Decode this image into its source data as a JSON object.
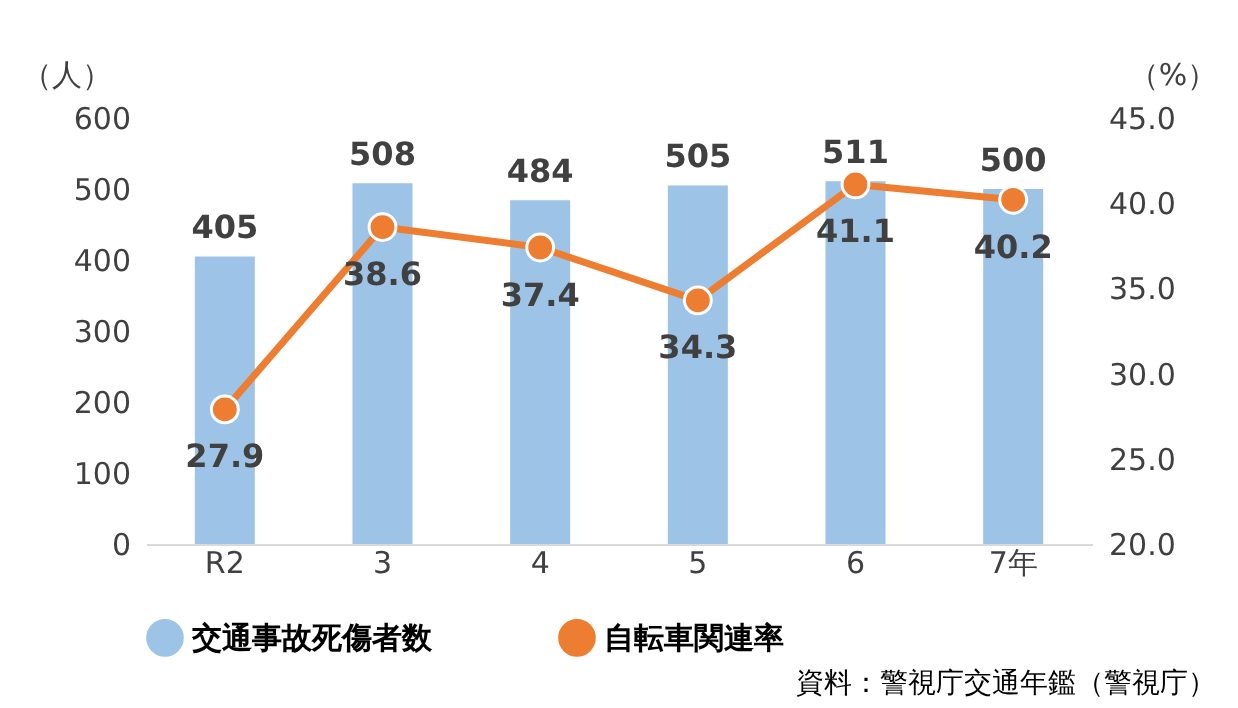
{
  "chart_data": {
    "type": "bar",
    "categories": [
      "R2",
      "3",
      "4",
      "5",
      "6",
      "7年"
    ],
    "series": [
      {
        "name": "交通事故死傷者数",
        "color": "#9dc3e6",
        "values": [
          405,
          508,
          484,
          505,
          511,
          500
        ]
      },
      {
        "name": "自転車関連率",
        "type": "line",
        "axis": "y2",
        "color": "#ed7d31",
        "marker": "circle",
        "values": [
          27.9,
          38.6,
          37.4,
          34.3,
          41.1,
          40.2
        ]
      }
    ],
    "ylabel": "（人）",
    "y2label": "（%）",
    "ylim": [
      0,
      600
    ],
    "yticks": [
      0,
      100,
      200,
      300,
      400,
      500,
      600
    ],
    "y2lim": [
      20,
      45
    ],
    "y2ticks": [
      {
        "value": 20,
        "label": "20.0"
      },
      {
        "value": 25,
        "label": "25.0"
      },
      {
        "value": 30,
        "label": "30.0"
      },
      {
        "value": 35,
        "label": "35.0"
      },
      {
        "value": 40,
        "label": "40.0"
      },
      {
        "value": 45,
        "label": "45.0"
      }
    ],
    "data_labels": true,
    "grid": false,
    "legend": "bottom",
    "annotations": [
      "資料：警視庁交通年鑑（警視庁）"
    ]
  }
}
